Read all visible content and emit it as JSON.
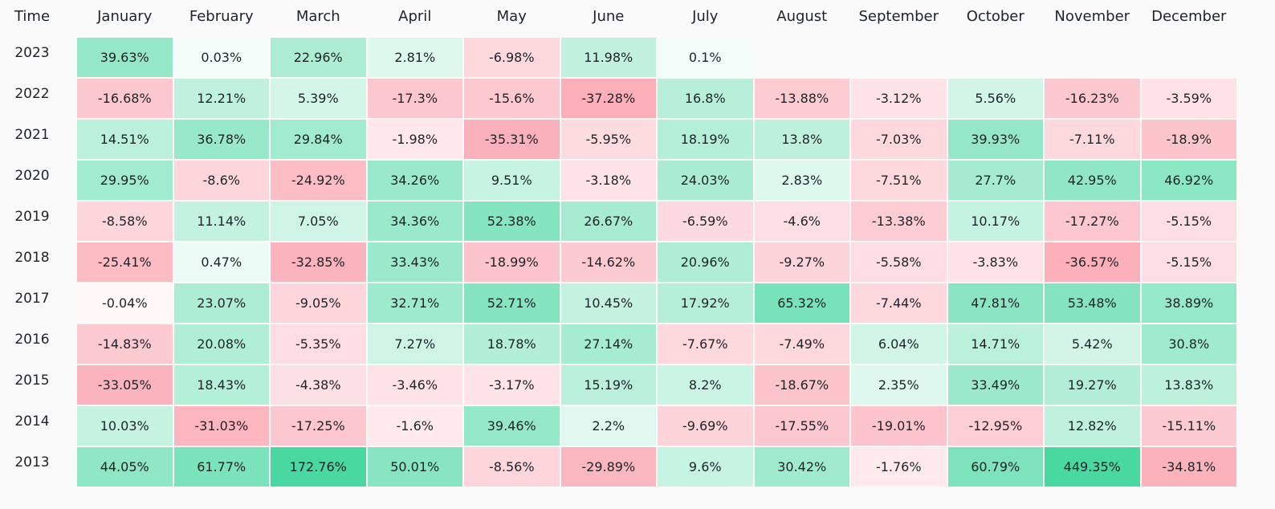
{
  "chart_data": {
    "type": "heatmap",
    "corner_label": "Time",
    "unit": "%",
    "columns": [
      "January",
      "February",
      "March",
      "April",
      "May",
      "June",
      "July",
      "August",
      "September",
      "October",
      "November",
      "December"
    ],
    "rows": [
      {
        "year": "2023",
        "values": [
          39.63,
          0.03,
          22.96,
          2.81,
          -6.98,
          11.98,
          0.1,
          null,
          null,
          null,
          null,
          null
        ]
      },
      {
        "year": "2022",
        "values": [
          -16.68,
          12.21,
          5.39,
          -17.3,
          -15.6,
          -37.28,
          16.8,
          -13.88,
          -3.12,
          5.56,
          -16.23,
          -3.59
        ]
      },
      {
        "year": "2021",
        "values": [
          14.51,
          36.78,
          29.84,
          -1.98,
          -35.31,
          -5.95,
          18.19,
          13.8,
          -7.03,
          39.93,
          -7.11,
          -18.9
        ]
      },
      {
        "year": "2020",
        "values": [
          29.95,
          -8.6,
          -24.92,
          34.26,
          9.51,
          -3.18,
          24.03,
          2.83,
          -7.51,
          27.7,
          42.95,
          46.92
        ]
      },
      {
        "year": "2019",
        "values": [
          -8.58,
          11.14,
          7.05,
          34.36,
          52.38,
          26.67,
          -6.59,
          -4.6,
          -13.38,
          10.17,
          -17.27,
          -5.15
        ]
      },
      {
        "year": "2018",
        "values": [
          -25.41,
          0.47,
          -32.85,
          33.43,
          -18.99,
          -14.62,
          20.96,
          -9.27,
          -5.58,
          -3.83,
          -36.57,
          -5.15
        ]
      },
      {
        "year": "2017",
        "values": [
          -0.04,
          23.07,
          -9.05,
          32.71,
          52.71,
          10.45,
          17.92,
          65.32,
          -7.44,
          47.81,
          53.48,
          38.89
        ]
      },
      {
        "year": "2016",
        "values": [
          -14.83,
          20.08,
          -5.35,
          7.27,
          18.78,
          27.14,
          -7.67,
          -7.49,
          6.04,
          14.71,
          5.42,
          30.8
        ]
      },
      {
        "year": "2015",
        "values": [
          -33.05,
          18.43,
          -4.38,
          -3.46,
          -3.17,
          15.19,
          8.2,
          -18.67,
          2.35,
          33.49,
          19.27,
          13.83
        ]
      },
      {
        "year": "2014",
        "values": [
          10.03,
          -31.03,
          -17.25,
          -1.6,
          39.46,
          2.2,
          -9.69,
          -17.55,
          -19.01,
          -12.95,
          12.82,
          -15.11
        ]
      },
      {
        "year": "2013",
        "values": [
          44.05,
          61.77,
          172.76,
          50.01,
          -8.56,
          -29.89,
          9.6,
          30.42,
          -1.76,
          60.79,
          449.35,
          -34.81
        ]
      }
    ],
    "colors": {
      "positive": "#0ecb81",
      "negative": "#f6465d",
      "neutral": "#ffffff",
      "background": "#fafafa",
      "text": "#1e2329"
    }
  }
}
